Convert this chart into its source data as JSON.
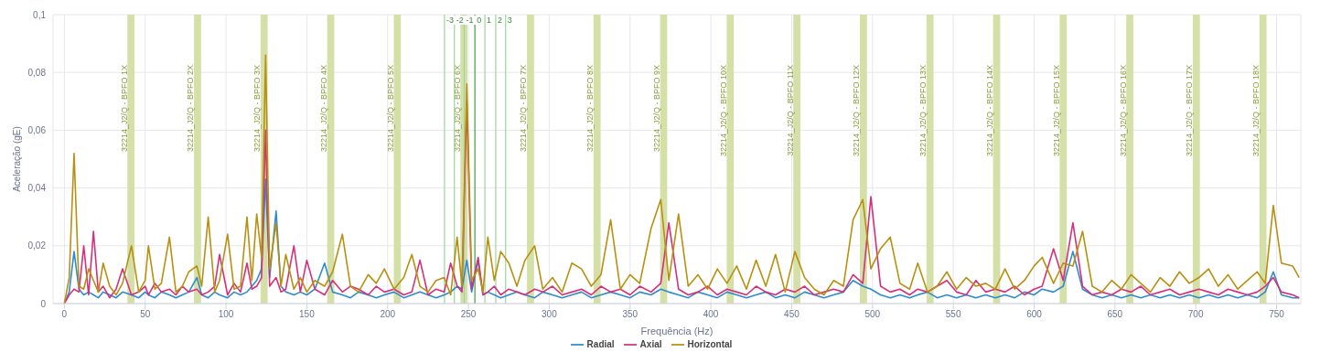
{
  "chart_data": {
    "type": "line",
    "xlabel": "Frequência (Hz)",
    "ylabel": "Aceleração (gE)",
    "x": [
      0,
      3,
      6,
      9,
      12,
      15,
      18,
      21,
      24,
      28,
      32,
      36,
      41.5,
      46,
      50,
      52,
      56,
      60,
      65,
      69,
      73,
      77,
      82,
      85,
      89,
      93,
      96,
      101,
      105,
      109,
      113,
      116,
      119,
      122,
      124.5,
      127,
      131,
      134,
      137,
      142,
      146,
      150,
      155,
      161,
      166,
      172,
      177,
      182,
      188,
      193,
      198,
      204,
      210,
      215,
      220,
      225,
      230,
      235,
      239,
      243,
      246,
      249,
      252,
      256,
      259,
      262,
      266,
      270,
      275,
      280,
      285,
      291,
      296,
      302,
      308,
      314,
      320,
      326,
      332,
      338,
      344,
      350,
      356,
      363,
      369,
      374,
      380,
      386,
      392,
      398,
      404,
      410,
      416,
      422,
      428,
      434,
      440,
      446,
      452,
      458,
      464,
      470,
      476,
      482,
      488,
      494,
      499,
      505,
      511,
      517,
      523,
      528,
      534,
      540,
      546,
      552,
      558,
      564,
      570,
      576,
      582,
      588,
      594,
      600,
      605,
      612,
      618,
      624,
      630,
      636,
      642,
      648,
      654,
      660,
      666,
      672,
      678,
      684,
      690,
      696,
      702,
      708,
      714,
      720,
      726,
      732,
      738,
      743,
      748,
      753,
      760,
      764
    ],
    "series": [
      {
        "name": "Radial",
        "color": "#2e8bd0",
        "values": [
          0,
          0.004,
          0.018,
          0.005,
          0.003,
          0.004,
          0.003,
          0.002,
          0.004,
          0.003,
          0.002,
          0.004,
          0.003,
          0.002,
          0.004,
          0.003,
          0.002,
          0.004,
          0.003,
          0.002,
          0.003,
          0.004,
          0.009,
          0.003,
          0.002,
          0.004,
          0.003,
          0.002,
          0.004,
          0.003,
          0.004,
          0.006,
          0.008,
          0.012,
          0.043,
          0.009,
          0.032,
          0.006,
          0.004,
          0.003,
          0.004,
          0.003,
          0.005,
          0.014,
          0.004,
          0.003,
          0.002,
          0.004,
          0.003,
          0.002,
          0.003,
          0.004,
          0.002,
          0.003,
          0.004,
          0.003,
          0.002,
          0.003,
          0.004,
          0.006,
          0.005,
          0.015,
          0.004,
          0.015,
          0.003,
          0.004,
          0.003,
          0.002,
          0.003,
          0.004,
          0.003,
          0.002,
          0.004,
          0.003,
          0.002,
          0.003,
          0.004,
          0.002,
          0.003,
          0.004,
          0.003,
          0.002,
          0.004,
          0.003,
          0.005,
          0.004,
          0.003,
          0.002,
          0.004,
          0.003,
          0.002,
          0.004,
          0.003,
          0.002,
          0.003,
          0.004,
          0.002,
          0.003,
          0.002,
          0.004,
          0.003,
          0.002,
          0.003,
          0.004,
          0.008,
          0.006,
          0.005,
          0.003,
          0.002,
          0.003,
          0.002,
          0.003,
          0.004,
          0.002,
          0.003,
          0.002,
          0.003,
          0.002,
          0.003,
          0.002,
          0.003,
          0.002,
          0.004,
          0.003,
          0.005,
          0.004,
          0.006,
          0.018,
          0.005,
          0.003,
          0.002,
          0.003,
          0.002,
          0.003,
          0.002,
          0.003,
          0.002,
          0.003,
          0.002,
          0.003,
          0.002,
          0.003,
          0.002,
          0.003,
          0.002,
          0.003,
          0.002,
          0.004,
          0.011,
          0.003,
          0.002,
          0.002
        ]
      },
      {
        "name": "Axial",
        "color": "#d6307a",
        "values": [
          0,
          0.003,
          0.005,
          0.004,
          0.02,
          0.003,
          0.025,
          0.004,
          0.006,
          0.002,
          0.005,
          0.012,
          0.003,
          0.004,
          0.006,
          0.003,
          0.007,
          0.004,
          0.005,
          0.003,
          0.006,
          0.004,
          0.005,
          0.003,
          0.004,
          0.006,
          0.017,
          0.003,
          0.007,
          0.004,
          0.014,
          0.005,
          0.006,
          0.009,
          0.06,
          0.006,
          0.009,
          0.004,
          0.005,
          0.02,
          0.004,
          0.015,
          0.005,
          0.003,
          0.008,
          0.004,
          0.006,
          0.005,
          0.003,
          0.006,
          0.004,
          0.005,
          0.003,
          0.004,
          0.015,
          0.003,
          0.005,
          0.004,
          0.014,
          0.006,
          0.004,
          0.07,
          0.005,
          0.016,
          0.003,
          0.004,
          0.006,
          0.003,
          0.005,
          0.004,
          0.003,
          0.005,
          0.004,
          0.006,
          0.003,
          0.004,
          0.005,
          0.003,
          0.006,
          0.004,
          0.005,
          0.003,
          0.006,
          0.004,
          0.007,
          0.028,
          0.005,
          0.003,
          0.004,
          0.006,
          0.003,
          0.005,
          0.004,
          0.003,
          0.006,
          0.004,
          0.003,
          0.005,
          0.004,
          0.006,
          0.003,
          0.004,
          0.005,
          0.004,
          0.01,
          0.007,
          0.037,
          0.006,
          0.004,
          0.005,
          0.003,
          0.005,
          0.004,
          0.006,
          0.008,
          0.004,
          0.003,
          0.008,
          0.004,
          0.005,
          0.004,
          0.006,
          0.003,
          0.005,
          0.006,
          0.019,
          0.008,
          0.028,
          0.006,
          0.003,
          0.004,
          0.003,
          0.005,
          0.004,
          0.006,
          0.003,
          0.004,
          0.005,
          0.003,
          0.004,
          0.005,
          0.004,
          0.003,
          0.005,
          0.004,
          0.003,
          0.004,
          0.006,
          0.009,
          0.004,
          0.003,
          0.002
        ]
      },
      {
        "name": "Horizontal",
        "color": "#b8900f",
        "values": [
          0,
          0.009,
          0.052,
          0.006,
          0.005,
          0.012,
          0.008,
          0.004,
          0.014,
          0.006,
          0.003,
          0.007,
          0.02,
          0.004,
          0.008,
          0.02,
          0.005,
          0.007,
          0.023,
          0.004,
          0.006,
          0.011,
          0.013,
          0.006,
          0.03,
          0.004,
          0.008,
          0.024,
          0.005,
          0.006,
          0.03,
          0.008,
          0.031,
          0.016,
          0.086,
          0.012,
          0.028,
          0.006,
          0.017,
          0.005,
          0.009,
          0.004,
          0.008,
          0.006,
          0.011,
          0.024,
          0.006,
          0.004,
          0.01,
          0.007,
          0.012,
          0.005,
          0.009,
          0.017,
          0.006,
          0.004,
          0.008,
          0.009,
          0.003,
          0.023,
          0.006,
          0.076,
          0.008,
          0.012,
          0.004,
          0.023,
          0.008,
          0.018,
          0.014,
          0.006,
          0.015,
          0.02,
          0.005,
          0.009,
          0.004,
          0.014,
          0.012,
          0.006,
          0.01,
          0.029,
          0.005,
          0.01,
          0.007,
          0.026,
          0.036,
          0.008,
          0.031,
          0.006,
          0.01,
          0.005,
          0.012,
          0.007,
          0.013,
          0.005,
          0.015,
          0.006,
          0.017,
          0.004,
          0.018,
          0.009,
          0.005,
          0.003,
          0.008,
          0.006,
          0.029,
          0.036,
          0.012,
          0.019,
          0.023,
          0.007,
          0.005,
          0.014,
          0.004,
          0.006,
          0.011,
          0.005,
          0.009,
          0.006,
          0.007,
          0.005,
          0.012,
          0.005,
          0.008,
          0.013,
          0.016,
          0.007,
          0.014,
          0.013,
          0.025,
          0.006,
          0.004,
          0.008,
          0.005,
          0.01,
          0.007,
          0.004,
          0.009,
          0.006,
          0.011,
          0.007,
          0.009,
          0.012,
          0.006,
          0.01,
          0.005,
          0.008,
          0.011,
          0.007,
          0.034,
          0.014,
          0.013,
          0.009
        ]
      }
    ],
    "xlim": [
      -7,
      765
    ],
    "xticks": [
      0,
      50,
      100,
      150,
      200,
      250,
      300,
      350,
      400,
      450,
      500,
      550,
      600,
      650,
      700,
      750
    ],
    "ylim": [
      0,
      0.1
    ],
    "yticks": [
      0,
      {
        "value": 0.02,
        "label": "0,02"
      },
      {
        "value": 0.04,
        "label": "0,04"
      },
      {
        "value": 0.06,
        "label": "0,06"
      },
      {
        "value": 0.08,
        "label": "0,08"
      },
      {
        "value": 0.1,
        "label": "0,1"
      }
    ],
    "grid": true,
    "legend": "bottom",
    "marker": "none",
    "line_style": "solid",
    "bands": [
      {
        "axis": "x",
        "from": 39.0,
        "to": 43.4,
        "label": "32214_J2/Q - BPFO 1X",
        "color": "#d5e0a8"
      },
      {
        "axis": "x",
        "from": 80.2,
        "to": 84.6,
        "label": "32214_J2/Q - BPFO 2X",
        "color": "#d5e0a8"
      },
      {
        "axis": "x",
        "from": 121.4,
        "to": 125.8,
        "label": "32214_J2/Q - BPFO 3X",
        "color": "#d5e0a8"
      },
      {
        "axis": "x",
        "from": 162.6,
        "to": 167.0,
        "label": "32214_J2/Q - BPFO 4X",
        "color": "#d5e0a8"
      },
      {
        "axis": "x",
        "from": 203.8,
        "to": 208.2,
        "label": "32214_J2/Q - BPFO 5X",
        "color": "#d5e0a8"
      },
      {
        "axis": "x",
        "from": 245.0,
        "to": 249.4,
        "label": "32214_J2/Q - BPFO 6X",
        "color": "#d5e0a8"
      },
      {
        "axis": "x",
        "from": 286.2,
        "to": 290.6,
        "label": "32214_J2/Q - BPFO 7X",
        "color": "#d5e0a8"
      },
      {
        "axis": "x",
        "from": 327.4,
        "to": 331.8,
        "label": "32214_J2/Q - BPFO 8X",
        "color": "#d5e0a8"
      },
      {
        "axis": "x",
        "from": 368.6,
        "to": 373.0,
        "label": "32214_J2/Q - BPFO 9X",
        "color": "#d5e0a8"
      },
      {
        "axis": "x",
        "from": 409.8,
        "to": 414.2,
        "label": "32214_J2/Q - BPFO 10X",
        "color": "#d5e0a8"
      },
      {
        "axis": "x",
        "from": 451.0,
        "to": 455.4,
        "label": "32214_J2/Q - BPFO 11X",
        "color": "#d5e0a8"
      },
      {
        "axis": "x",
        "from": 492.2,
        "to": 496.6,
        "label": "32214_J2/Q - BPFO 12X",
        "color": "#d5e0a8"
      },
      {
        "axis": "x",
        "from": 533.4,
        "to": 537.8,
        "label": "32214_J2/Q - BPFO 13X",
        "color": "#d5e0a8"
      },
      {
        "axis": "x",
        "from": 574.6,
        "to": 579.0,
        "label": "32214_J2/Q - BPFO 14X",
        "color": "#d5e0a8"
      },
      {
        "axis": "x",
        "from": 615.8,
        "to": 620.2,
        "label": "32214_J2/Q - BPFO 15X",
        "color": "#d5e0a8"
      },
      {
        "axis": "x",
        "from": 657.0,
        "to": 661.4,
        "label": "32214_J2/Q - BPFO 16X",
        "color": "#d5e0a8"
      },
      {
        "axis": "x",
        "from": 698.2,
        "to": 702.6,
        "label": "32214_J2/Q - BPFO 17X",
        "color": "#d5e0a8"
      },
      {
        "axis": "x",
        "from": 739.4,
        "to": 743.8,
        "label": "32214_J2/Q - BPFO 18X",
        "color": "#d5e0a8"
      }
    ],
    "annotations": [
      {
        "text": "-3",
        "x": 235.2
      },
      {
        "text": "-2",
        "x": 241.3
      },
      {
        "text": "-1",
        "x": 247.4
      },
      {
        "text": "0",
        "x": 254
      },
      {
        "text": "1",
        "x": 260.2
      },
      {
        "text": "2",
        "x": 266.9
      },
      {
        "text": "3",
        "x": 273
      }
    ],
    "ref_lines": [
      {
        "axis": "x",
        "value": 235.2,
        "color": "#9bd69b"
      },
      {
        "axis": "x",
        "value": 241.3,
        "color": "#9bd69b"
      },
      {
        "axis": "x",
        "value": 247.4,
        "color": "#9bd69b"
      },
      {
        "axis": "x",
        "value": 254,
        "color": "#3f9f3f"
      },
      {
        "axis": "x",
        "value": 260.2,
        "color": "#9bd69b"
      },
      {
        "axis": "x",
        "value": 266.9,
        "color": "#9bd69b"
      },
      {
        "axis": "x",
        "value": 273,
        "color": "#9bd69b"
      }
    ]
  }
}
